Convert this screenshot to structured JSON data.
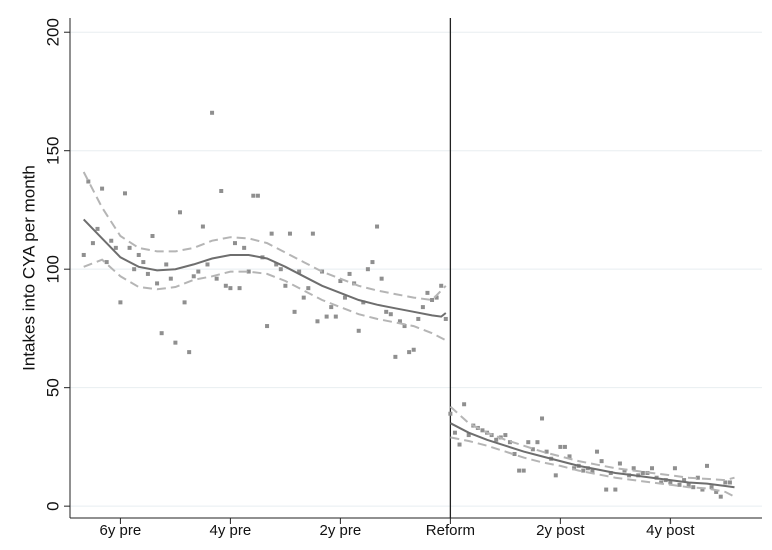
{
  "chart_data": {
    "type": "scatter",
    "y_label": "Intakes into CYA per month",
    "xlim": [
      -83,
      68
    ],
    "ylim": [
      -5,
      206
    ],
    "xticks": [
      {
        "value": -72,
        "label": "6y pre"
      },
      {
        "value": -48,
        "label": "4y pre"
      },
      {
        "value": -24,
        "label": "2y pre"
      },
      {
        "value": 0,
        "label": "Reform"
      },
      {
        "value": 24,
        "label": "2y post"
      },
      {
        "value": 48,
        "label": "4y post"
      }
    ],
    "yticks": [
      0,
      50,
      100,
      150,
      200
    ],
    "grid": true,
    "vline": 0,
    "vline_color": "#222222",
    "series": [
      {
        "mode": "points",
        "color": "#8f8f8f",
        "x": [
          -80,
          -79,
          -78,
          -77,
          -76,
          -75,
          -74,
          -73,
          -72,
          -71,
          -70,
          -69,
          -68,
          -67,
          -66,
          -65,
          -64,
          -63,
          -62,
          -61,
          -60,
          -59,
          -58,
          -57,
          -56,
          -55,
          -54,
          -53,
          -52,
          -51,
          -50,
          -49,
          -48,
          -47,
          -46,
          -45,
          -44,
          -43,
          -42,
          -41,
          -40,
          -39,
          -38,
          -37,
          -36,
          -35,
          -34,
          -33,
          -32,
          -31,
          -30,
          -29,
          -28,
          -27,
          -26,
          -25,
          -24,
          -23,
          -22,
          -21,
          -20,
          -19,
          -18,
          -17,
          -16,
          -15,
          -14,
          -13,
          -12,
          -11,
          -10,
          -9,
          -8,
          -7,
          -6,
          -5,
          -4,
          -3,
          -2,
          -1
        ],
        "values": [
          106,
          137,
          111,
          117,
          134,
          103,
          112,
          109,
          86,
          132,
          109,
          100,
          106,
          103,
          98,
          114,
          94,
          73,
          102,
          96,
          69,
          124,
          86,
          65,
          97,
          99,
          118,
          102,
          166,
          96,
          133,
          93,
          92,
          111,
          92,
          109,
          99,
          131,
          131,
          105,
          76,
          115,
          102,
          100,
          93,
          115,
          82,
          99,
          88,
          92,
          115,
          78,
          99,
          80,
          84,
          80,
          95,
          88,
          98,
          94,
          74,
          86,
          100,
          103,
          118,
          96,
          82,
          81,
          63,
          78,
          76,
          65,
          66,
          79,
          84,
          90,
          87,
          88,
          93,
          79
        ]
      },
      {
        "mode": "points",
        "color": "#8f8f8f",
        "x": [
          0,
          1,
          2,
          3,
          4,
          5,
          6,
          7,
          8,
          9,
          10,
          11,
          12,
          13,
          14,
          15,
          16,
          17,
          18,
          19,
          20,
          21,
          22,
          23,
          24,
          25,
          26,
          27,
          28,
          29,
          30,
          31,
          32,
          33,
          34,
          35,
          36,
          37,
          38,
          39,
          40,
          41,
          42,
          43,
          44,
          45,
          46,
          47,
          48,
          49,
          50,
          51,
          52,
          53,
          54,
          55,
          56,
          57,
          58,
          59,
          60,
          61
        ],
        "values": [
          39,
          31,
          26,
          43,
          30,
          34,
          33,
          32,
          31,
          30,
          28,
          29,
          30,
          27,
          22,
          15,
          15,
          27,
          24,
          27,
          37,
          23,
          20,
          13,
          25,
          25,
          21,
          16,
          17,
          15,
          16,
          15,
          23,
          19,
          7,
          14,
          7,
          18,
          15,
          13,
          16,
          13,
          14,
          14,
          16,
          12,
          10,
          11,
          10,
          16,
          9,
          11,
          9,
          8,
          12,
          7,
          17,
          8,
          6,
          4,
          10,
          10
        ]
      },
      {
        "mode": "line",
        "color": "#6e6e6e",
        "x": [
          -80,
          -76,
          -72,
          -68,
          -64,
          -60,
          -56,
          -52,
          -48,
          -44,
          -40,
          -36,
          -32,
          -28,
          -24,
          -20,
          -16,
          -12,
          -8,
          -4,
          -2,
          -1
        ],
        "values": [
          121,
          113,
          105,
          101,
          99.5,
          100,
          102,
          104.5,
          106,
          106,
          104.5,
          101,
          97,
          93,
          90,
          87,
          85,
          83.5,
          82,
          80.5,
          80,
          81.5
        ]
      },
      {
        "mode": "line",
        "dashed": true,
        "color": "#b5b5b5",
        "x": [
          -80,
          -76,
          -72,
          -68,
          -64,
          -60,
          -56,
          -52,
          -48,
          -44,
          -40,
          -36,
          -32,
          -28,
          -24,
          -20,
          -16,
          -12,
          -8,
          -4,
          -1
        ],
        "values": [
          141,
          126,
          114,
          109,
          107.5,
          107.5,
          109,
          112,
          113.5,
          113,
          111,
          107,
          103,
          99,
          96,
          93,
          91,
          89.5,
          88,
          87,
          93
        ]
      },
      {
        "mode": "line",
        "dashed": true,
        "color": "#b5b5b5",
        "x": [
          -80,
          -76,
          -72,
          -68,
          -64,
          -60,
          -56,
          -52,
          -48,
          -44,
          -40,
          -36,
          -32,
          -28,
          -24,
          -20,
          -16,
          -12,
          -8,
          -4,
          -1
        ],
        "values": [
          101,
          104,
          97,
          92.5,
          91.5,
          92.5,
          95.5,
          97,
          99,
          99,
          98,
          95,
          91,
          87,
          84,
          81,
          79,
          77.5,
          76,
          73,
          70
        ]
      },
      {
        "mode": "line",
        "color": "#6e6e6e",
        "x": [
          0,
          4,
          8,
          12,
          16,
          20,
          24,
          28,
          32,
          36,
          40,
          44,
          48,
          52,
          56,
          60,
          62
        ],
        "values": [
          35,
          31,
          28,
          25.5,
          23,
          21,
          19,
          17,
          15.5,
          14,
          13,
          12,
          11,
          10,
          9.5,
          8.5,
          8
        ]
      },
      {
        "mode": "line",
        "dashed": true,
        "color": "#b5b5b5",
        "x": [
          0,
          4,
          8,
          12,
          16,
          20,
          24,
          28,
          32,
          36,
          40,
          44,
          48,
          52,
          56,
          60,
          62
        ],
        "values": [
          42,
          35,
          31,
          28,
          25.5,
          23,
          21,
          19,
          17.5,
          16,
          15,
          14,
          13,
          12,
          11.5,
          11,
          12
        ]
      },
      {
        "mode": "line",
        "dashed": true,
        "color": "#b5b5b5",
        "x": [
          0,
          4,
          8,
          12,
          16,
          20,
          24,
          28,
          32,
          36,
          40,
          44,
          48,
          52,
          56,
          60,
          62
        ],
        "values": [
          29,
          27.5,
          25.5,
          23,
          20.5,
          18.5,
          17,
          15,
          13.5,
          12,
          11,
          10,
          9,
          8,
          7.5,
          6,
          4
        ]
      }
    ]
  }
}
